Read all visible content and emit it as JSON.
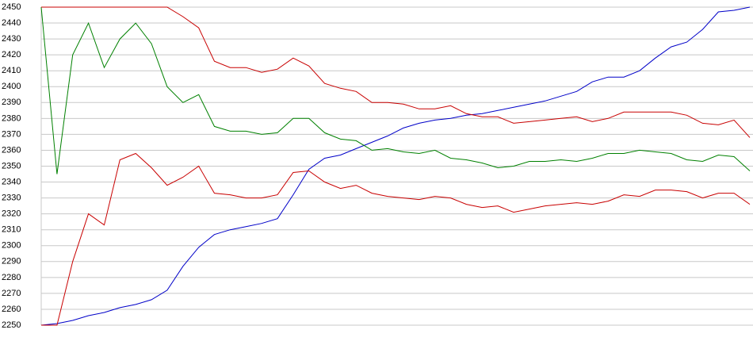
{
  "chart_data": {
    "type": "line",
    "ylim": [
      2250,
      2450
    ],
    "yticks": [
      2250,
      2260,
      2270,
      2280,
      2290,
      2300,
      2310,
      2320,
      2330,
      2340,
      2350,
      2360,
      2370,
      2380,
      2390,
      2400,
      2410,
      2420,
      2430,
      2440,
      2450
    ],
    "grid": true,
    "series": [
      {
        "color": "#0000c8",
        "values": [
          2250,
          2251,
          2253,
          2256,
          2258,
          2261,
          2263,
          2266,
          2272,
          2287,
          2299,
          2307,
          2310,
          2312,
          2314,
          2317,
          2332,
          2348,
          2355,
          2357,
          2361,
          2365,
          2369,
          2374,
          2377,
          2379,
          2380,
          2382,
          2383,
          2385,
          2387,
          2389,
          2391,
          2394,
          2397,
          2403,
          2406,
          2406,
          2410,
          2418,
          2425,
          2428,
          2436,
          2447,
          2448,
          2450
        ]
      },
      {
        "color": "#008000",
        "values": [
          2450,
          2345,
          2420,
          2440,
          2412,
          2430,
          2440,
          2427,
          2400,
          2390,
          2395,
          2375,
          2372,
          2372,
          2370,
          2371,
          2380,
          2380,
          2371,
          2367,
          2366,
          2360,
          2361,
          2359,
          2358,
          2360,
          2355,
          2354,
          2352,
          2349,
          2350,
          2353,
          2353,
          2354,
          2353,
          2355,
          2358,
          2358,
          2360,
          2359,
          2358,
          2354,
          2353,
          2357,
          2356,
          2347
        ]
      },
      {
        "color": "#c80000",
        "values": [
          2450,
          2450,
          2450,
          2450,
          2450,
          2450,
          2450,
          2450,
          2450,
          2444,
          2437,
          2416,
          2412,
          2412,
          2409,
          2411,
          2418,
          2413,
          2402,
          2399,
          2397,
          2390,
          2390,
          2389,
          2386,
          2386,
          2388,
          2383,
          2381,
          2381,
          2377,
          2378,
          2379,
          2380,
          2381,
          2378,
          2380,
          2384,
          2384,
          2384,
          2384,
          2382,
          2377,
          2376,
          2379,
          2368
        ]
      },
      {
        "color": "#c80000",
        "values": [
          2250,
          2250,
          2290,
          2320,
          2313,
          2354,
          2358,
          2349,
          2338,
          2343,
          2350,
          2333,
          2332,
          2330,
          2330,
          2332,
          2346,
          2347,
          2340,
          2336,
          2338,
          2333,
          2331,
          2330,
          2329,
          2331,
          2330,
          2326,
          2324,
          2325,
          2321,
          2323,
          2325,
          2326,
          2327,
          2326,
          2328,
          2332,
          2331,
          2335,
          2335,
          2334,
          2330,
          2333,
          2333,
          2326
        ]
      }
    ]
  }
}
